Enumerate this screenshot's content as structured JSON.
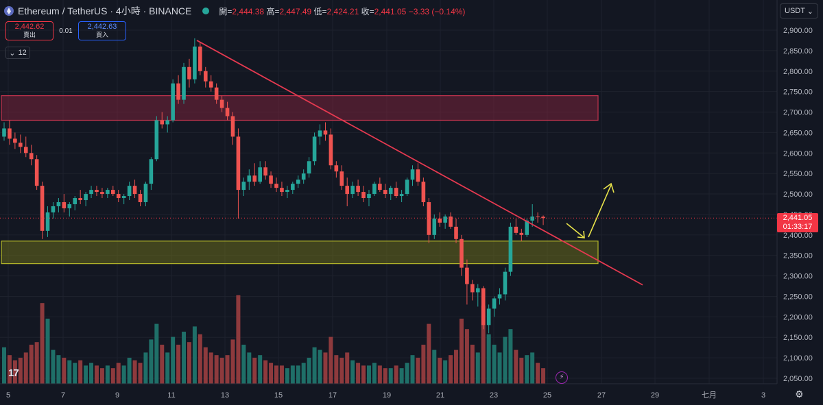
{
  "header": {
    "symbol_title": "Ethereum / TetherUS · 4小時 · BINANCE",
    "open_label": "開=",
    "open": "2,444.38",
    "high_label": "高=",
    "high": "2,447.49",
    "low_label": "低=",
    "low": "2,424.21",
    "close_label": "收=",
    "close": "2,441.05",
    "change": "−3.33 (−0.14%)"
  },
  "trade": {
    "sell_price": "2,442.62",
    "sell_label": "賣出",
    "spread": "0.01",
    "buy_price": "2,442.63",
    "buy_label": "買入"
  },
  "indicator_toggle": {
    "count": "12"
  },
  "currency": {
    "label": "USDT"
  },
  "last_price": {
    "price": "2,441.05",
    "countdown": "01:33:17"
  },
  "colors": {
    "up": "#26a69a",
    "down": "#ef5350",
    "trendline": "#e53950",
    "accent": "#f23645",
    "buy": "#2962ff"
  },
  "chart_data": {
    "type": "candlestick",
    "symbol": "ETH/USDT",
    "interval": "4小時",
    "y_ticks": [
      2050,
      2100,
      2150,
      2200,
      2250,
      2300,
      2350,
      2400,
      2450,
      2500,
      2550,
      2600,
      2650,
      2700,
      2750,
      2800,
      2850,
      2900
    ],
    "y_range": [
      2030,
      2925
    ],
    "x_ticks": [
      "5",
      "7",
      "9",
      "11",
      "13",
      "15",
      "17",
      "19",
      "21",
      "23",
      "25",
      "27",
      "29",
      "七月",
      "3"
    ],
    "last_close": 2441.05,
    "candles": [
      [
        2640,
        2675,
        2630,
        2660,
        28
      ],
      [
        2660,
        2680,
        2620,
        2635,
        22
      ],
      [
        2635,
        2650,
        2610,
        2625,
        18
      ],
      [
        2625,
        2645,
        2600,
        2615,
        20
      ],
      [
        2615,
        2640,
        2590,
        2600,
        24
      ],
      [
        2600,
        2620,
        2570,
        2585,
        30
      ],
      [
        2585,
        2595,
        2510,
        2520,
        32
      ],
      [
        2520,
        2530,
        2390,
        2410,
        62
      ],
      [
        2410,
        2470,
        2395,
        2455,
        50
      ],
      [
        2455,
        2480,
        2440,
        2470,
        26
      ],
      [
        2470,
        2490,
        2455,
        2480,
        22
      ],
      [
        2480,
        2500,
        2455,
        2465,
        20
      ],
      [
        2465,
        2480,
        2445,
        2475,
        18
      ],
      [
        2475,
        2495,
        2460,
        2490,
        16
      ],
      [
        2490,
        2510,
        2475,
        2485,
        18
      ],
      [
        2485,
        2505,
        2470,
        2500,
        14
      ],
      [
        2500,
        2520,
        2490,
        2510,
        16
      ],
      [
        2510,
        2520,
        2495,
        2505,
        14
      ],
      [
        2505,
        2515,
        2490,
        2500,
        12
      ],
      [
        2500,
        2515,
        2490,
        2510,
        14
      ],
      [
        2510,
        2520,
        2495,
        2500,
        12
      ],
      [
        2500,
        2510,
        2480,
        2490,
        16
      ],
      [
        2490,
        2500,
        2475,
        2495,
        14
      ],
      [
        2495,
        2530,
        2485,
        2520,
        20
      ],
      [
        2520,
        2535,
        2490,
        2500,
        18
      ],
      [
        2500,
        2510,
        2470,
        2480,
        16
      ],
      [
        2480,
        2530,
        2470,
        2525,
        24
      ],
      [
        2525,
        2590,
        2510,
        2585,
        34
      ],
      [
        2585,
        2690,
        2580,
        2680,
        46
      ],
      [
        2680,
        2700,
        2660,
        2670,
        30
      ],
      [
        2670,
        2690,
        2650,
        2680,
        24
      ],
      [
        2680,
        2780,
        2675,
        2770,
        36
      ],
      [
        2770,
        2790,
        2720,
        2730,
        30
      ],
      [
        2730,
        2820,
        2720,
        2810,
        40
      ],
      [
        2810,
        2830,
        2760,
        2780,
        32
      ],
      [
        2780,
        2880,
        2770,
        2860,
        44
      ],
      [
        2860,
        2870,
        2790,
        2800,
        38
      ],
      [
        2800,
        2810,
        2760,
        2775,
        28
      ],
      [
        2775,
        2790,
        2750,
        2760,
        24
      ],
      [
        2760,
        2770,
        2720,
        2730,
        22
      ],
      [
        2730,
        2740,
        2700,
        2710,
        20
      ],
      [
        2710,
        2725,
        2680,
        2690,
        22
      ],
      [
        2690,
        2700,
        2620,
        2640,
        34
      ],
      [
        2640,
        2660,
        2440,
        2510,
        68
      ],
      [
        2510,
        2540,
        2495,
        2530,
        30
      ],
      [
        2530,
        2560,
        2510,
        2545,
        24
      ],
      [
        2545,
        2575,
        2520,
        2530,
        20
      ],
      [
        2530,
        2580,
        2525,
        2565,
        22
      ],
      [
        2565,
        2580,
        2535,
        2545,
        18
      ],
      [
        2545,
        2555,
        2515,
        2525,
        16
      ],
      [
        2525,
        2540,
        2505,
        2515,
        14
      ],
      [
        2515,
        2530,
        2495,
        2505,
        14
      ],
      [
        2505,
        2520,
        2490,
        2510,
        12
      ],
      [
        2510,
        2530,
        2500,
        2525,
        14
      ],
      [
        2525,
        2545,
        2515,
        2535,
        14
      ],
      [
        2535,
        2560,
        2525,
        2550,
        16
      ],
      [
        2550,
        2590,
        2540,
        2580,
        20
      ],
      [
        2580,
        2650,
        2570,
        2640,
        28
      ],
      [
        2640,
        2670,
        2620,
        2655,
        26
      ],
      [
        2655,
        2675,
        2630,
        2645,
        24
      ],
      [
        2645,
        2660,
        2560,
        2570,
        36
      ],
      [
        2570,
        2580,
        2540,
        2555,
        22
      ],
      [
        2555,
        2570,
        2510,
        2520,
        20
      ],
      [
        2520,
        2540,
        2470,
        2500,
        24
      ],
      [
        2500,
        2530,
        2490,
        2520,
        18
      ],
      [
        2520,
        2535,
        2495,
        2505,
        16
      ],
      [
        2505,
        2520,
        2480,
        2490,
        14
      ],
      [
        2490,
        2510,
        2470,
        2500,
        14
      ],
      [
        2500,
        2530,
        2495,
        2525,
        16
      ],
      [
        2525,
        2540,
        2505,
        2510,
        14
      ],
      [
        2510,
        2525,
        2490,
        2500,
        12
      ],
      [
        2500,
        2520,
        2485,
        2515,
        12
      ],
      [
        2515,
        2530,
        2490,
        2495,
        14
      ],
      [
        2495,
        2510,
        2480,
        2500,
        12
      ],
      [
        2500,
        2540,
        2495,
        2535,
        16
      ],
      [
        2535,
        2570,
        2520,
        2560,
        22
      ],
      [
        2560,
        2575,
        2520,
        2530,
        20
      ],
      [
        2530,
        2540,
        2470,
        2480,
        30
      ],
      [
        2480,
        2490,
        2380,
        2400,
        46
      ],
      [
        2400,
        2450,
        2390,
        2440,
        26
      ],
      [
        2440,
        2455,
        2420,
        2430,
        20
      ],
      [
        2430,
        2450,
        2415,
        2445,
        18
      ],
      [
        2445,
        2455,
        2415,
        2420,
        22
      ],
      [
        2420,
        2440,
        2380,
        2390,
        26
      ],
      [
        2390,
        2400,
        2300,
        2320,
        50
      ],
      [
        2320,
        2340,
        2230,
        2280,
        42
      ],
      [
        2280,
        2290,
        2240,
        2260,
        30
      ],
      [
        2260,
        2280,
        2225,
        2270,
        24
      ],
      [
        2270,
        2275,
        2170,
        2180,
        60
      ],
      [
        2180,
        2230,
        2160,
        2220,
        38
      ],
      [
        2220,
        2250,
        2200,
        2245,
        30
      ],
      [
        2245,
        2270,
        2230,
        2255,
        24
      ],
      [
        2255,
        2320,
        2240,
        2310,
        36
      ],
      [
        2310,
        2430,
        2300,
        2420,
        42
      ],
      [
        2420,
        2440,
        2400,
        2405,
        26
      ],
      [
        2405,
        2415,
        2385,
        2400,
        20
      ],
      [
        2400,
        2440,
        2395,
        2435,
        22
      ],
      [
        2435,
        2475,
        2420,
        2445,
        24
      ],
      [
        2445,
        2455,
        2430,
        2444,
        16
      ],
      [
        2444.38,
        2447.49,
        2424.21,
        2441.05,
        12
      ]
    ],
    "zones": [
      {
        "name": "resistance",
        "from": 2680,
        "to": 2740,
        "color": "#8e2640"
      },
      {
        "name": "support",
        "from": 2330,
        "to": 2385,
        "color": "#7a7d1a"
      }
    ],
    "trendline": {
      "from_price": 2875,
      "to_price": 2278
    },
    "forecast_arrows": "down then up"
  }
}
